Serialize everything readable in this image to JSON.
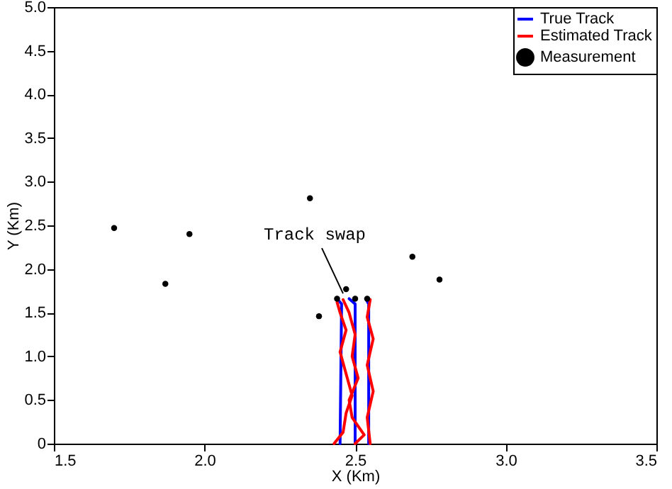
{
  "chart_data": {
    "type": "line",
    "xlabel": "X (Km)",
    "ylabel": "Y (Km)",
    "xlim": [
      1.5,
      3.5
    ],
    "xticks": [
      1.5,
      {
        "value": 2,
        "label": "2.0"
      },
      2.5,
      {
        "value": 3,
        "label": "3.0"
      },
      3.5
    ],
    "ylim": [
      0,
      5
    ],
    "yticks": [
      0,
      0.5,
      {
        "value": 1,
        "label": "1.0"
      },
      1.5,
      {
        "value": 2,
        "label": "2.0"
      },
      2.5,
      {
        "value": 3,
        "label": "3.0"
      },
      3.5,
      {
        "value": 4,
        "label": "4.0"
      },
      4.5,
      {
        "value": 5,
        "label": "5.0"
      }
    ],
    "grid": false,
    "legend": "top right",
    "annotations": [
      {
        "text": "Track swap",
        "x": 2.46,
        "y": 1.72
      }
    ],
    "series": [
      {
        "name": "True Track",
        "type": "line",
        "color": "#0000ff",
        "x": [
          2.45,
          2.455,
          2.44
        ],
        "values": [
          0,
          1.6,
          1.66
        ]
      },
      {
        "type": "line",
        "color": "#0000ff",
        "x": [
          2.5,
          2.5,
          2.48
        ],
        "values": [
          0,
          1.6,
          1.66
        ]
      },
      {
        "type": "line",
        "color": "#0000ff",
        "x": [
          2.545,
          2.545,
          2.535
        ],
        "values": [
          0,
          1.6,
          1.66
        ]
      },
      {
        "name": "Estimated Track",
        "type": "line",
        "color": "#ff0000",
        "x": [
          2.43,
          2.46,
          2.47,
          2.49,
          2.47,
          2.45,
          2.47,
          2.45,
          2.44
        ],
        "values": [
          0,
          0.13,
          0.35,
          0.55,
          0.8,
          1.05,
          1.3,
          1.5,
          1.62
        ]
      },
      {
        "type": "line",
        "color": "#ff0000",
        "x": [
          2.5,
          2.53,
          2.49,
          2.48,
          2.51,
          2.49,
          2.5,
          2.48,
          2.46
        ],
        "values": [
          0,
          0.1,
          0.3,
          0.5,
          0.75,
          1.0,
          1.25,
          1.5,
          1.65
        ]
      },
      {
        "type": "line",
        "color": "#ff0000",
        "x": [
          2.55,
          2.54,
          2.56,
          2.54,
          2.56,
          2.54,
          2.55
        ],
        "values": [
          0,
          0.3,
          0.6,
          0.9,
          1.2,
          1.45,
          1.65
        ]
      },
      {
        "name": "Measurement",
        "type": "scatter",
        "marker": "circle",
        "color": "#000000",
        "x": [
          1.7,
          1.87,
          1.95,
          2.35,
          2.69,
          2.78,
          2.38,
          2.47,
          2.44,
          2.5,
          2.54
        ],
        "values": [
          2.47,
          1.83,
          2.4,
          2.81,
          2.14,
          1.88,
          1.46,
          1.77,
          1.66,
          1.66,
          1.66
        ]
      }
    ]
  }
}
